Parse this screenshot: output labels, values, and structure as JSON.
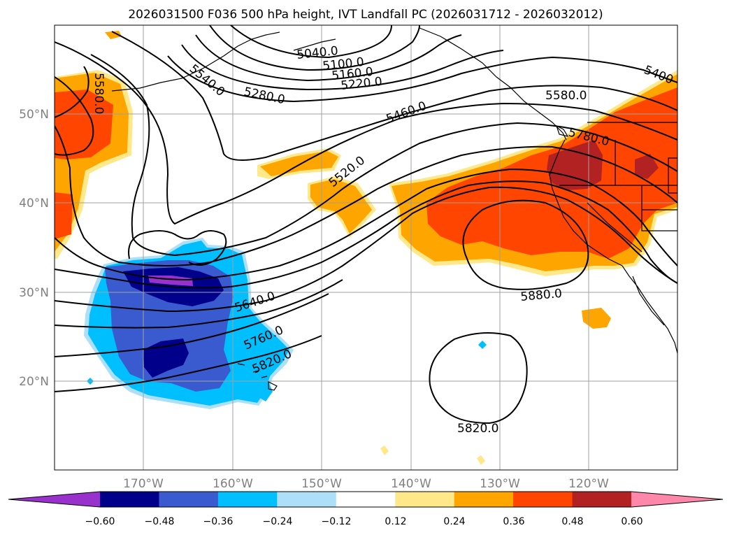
{
  "title": "2026031500 F036 500 hPa height, IVT Landfall PC (2026031712 - 2026032012)",
  "x_ticks": [
    "170°W",
    "160°W",
    "150°W",
    "140°W",
    "130°W",
    "120°W"
  ],
  "y_ticks": [
    "50°N",
    "40°N",
    "30°N",
    "20°N"
  ],
  "contour_labels": [
    "5040.0",
    "5100.0",
    "5160.0",
    "5220.0",
    "5280.0",
    "5400",
    "5580.0",
    "5580.0",
    "5540.0",
    "5460.0",
    "5520.0",
    "5780.0",
    "5640.0",
    "5760.0",
    "5820.0",
    "5880.0",
    "5820.0"
  ],
  "colorbar": {
    "tick_labels": [
      "−0.60",
      "−0.48",
      "−0.36",
      "−0.24",
      "−0.12",
      "0.12",
      "0.24",
      "0.36",
      "0.48",
      "0.60"
    ],
    "colors": [
      "#9932CC",
      "#00008B",
      "#3A5BD0",
      "#00BFFF",
      "#ADE0F8",
      "#FFFFFF",
      "#FFE88A",
      "#FFA500",
      "#FF4500",
      "#B22222",
      "#FF88AA"
    ]
  },
  "colors": {
    "neg_strong": "#00008B",
    "neg_mid": "#3A5BD0",
    "neg_light": "#00BFFF",
    "neg_faint": "#ADE0F8",
    "pos_faint": "#FFE88A",
    "pos_light": "#FFA500",
    "pos_mid": "#FF4500",
    "pos_strong": "#B22222",
    "purple": "#9932CC"
  }
}
